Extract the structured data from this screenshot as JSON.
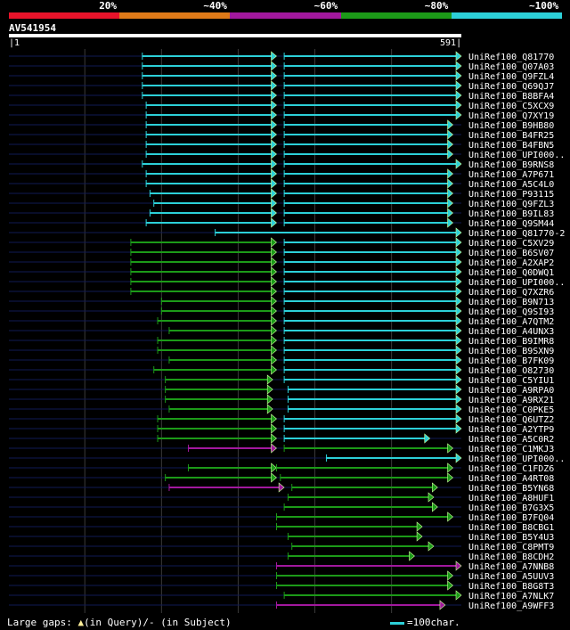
{
  "legend": {
    "labels": [
      "20%",
      "~40%",
      "~60%",
      "~80%",
      "~100%"
    ],
    "colors": [
      "#e8132a",
      "#e07a18",
      "#a2189e",
      "#1c9a18",
      "#2cd0d8"
    ]
  },
  "query": {
    "id": "AV541954",
    "start": "1",
    "end": "591"
  },
  "footer": {
    "gaps_text": "Large gaps: ",
    "query_part": "(in Query)/- (in Subject)",
    "scale_text": "=100char."
  },
  "chart_data": {
    "type": "alignment",
    "query_length": 591,
    "hits": [
      {
        "id": "UniRef100_Q81770",
        "segs": [
          [
            1,
            591,
            "blank"
          ],
          [
            175,
            350,
            "cyan"
          ],
          [
            360,
            591,
            "cyan"
          ]
        ]
      },
      {
        "id": "UniRef100_Q07A03",
        "segs": [
          [
            1,
            591,
            "blank"
          ],
          [
            175,
            350,
            "cyan"
          ],
          [
            360,
            591,
            "cyan"
          ]
        ]
      },
      {
        "id": "UniRef100_Q9FZL4",
        "segs": [
          [
            1,
            591,
            "blank"
          ],
          [
            175,
            350,
            "cyan"
          ],
          [
            360,
            591,
            "cyan"
          ]
        ]
      },
      {
        "id": "UniRef100_Q69QJ7",
        "segs": [
          [
            1,
            591,
            "blank"
          ],
          [
            175,
            350,
            "cyan"
          ],
          [
            360,
            591,
            "cyan"
          ]
        ]
      },
      {
        "id": "UniRef100_B8BFA4",
        "segs": [
          [
            1,
            591,
            "blank"
          ],
          [
            175,
            350,
            "cyan"
          ],
          [
            360,
            591,
            "cyan"
          ]
        ]
      },
      {
        "id": "UniRef100_C5XCX9",
        "segs": [
          [
            1,
            591,
            "blank"
          ],
          [
            180,
            350,
            "cyan"
          ],
          [
            360,
            591,
            "cyan"
          ]
        ]
      },
      {
        "id": "UniRef100_Q7XY19",
        "segs": [
          [
            1,
            591,
            "blank"
          ],
          [
            180,
            350,
            "cyan"
          ],
          [
            360,
            591,
            "cyan"
          ]
        ]
      },
      {
        "id": "UniRef100_B9HB80",
        "segs": [
          [
            1,
            591,
            "blank"
          ],
          [
            180,
            350,
            "cyan"
          ],
          [
            360,
            580,
            "cyan"
          ]
        ]
      },
      {
        "id": "UniRef100_B4FR25",
        "segs": [
          [
            1,
            591,
            "blank"
          ],
          [
            180,
            350,
            "cyan"
          ],
          [
            360,
            580,
            "cyan"
          ]
        ]
      },
      {
        "id": "UniRef100_B4FBN5",
        "segs": [
          [
            1,
            591,
            "blank"
          ],
          [
            180,
            350,
            "cyan"
          ],
          [
            360,
            580,
            "cyan"
          ]
        ]
      },
      {
        "id": "UniRef100_UPI000..",
        "segs": [
          [
            1,
            591,
            "blank"
          ],
          [
            180,
            350,
            "cyan"
          ],
          [
            360,
            580,
            "cyan"
          ]
        ]
      },
      {
        "id": "UniRef100_B9RNS8",
        "segs": [
          [
            1,
            591,
            "blank"
          ],
          [
            175,
            350,
            "cyan"
          ],
          [
            360,
            591,
            "cyan"
          ]
        ]
      },
      {
        "id": "UniRef100_A7P671",
        "segs": [
          [
            1,
            591,
            "blank"
          ],
          [
            180,
            350,
            "cyan"
          ],
          [
            360,
            580,
            "cyan"
          ]
        ]
      },
      {
        "id": "UniRef100_A5C4L0",
        "segs": [
          [
            1,
            591,
            "blank"
          ],
          [
            180,
            350,
            "cyan"
          ],
          [
            360,
            580,
            "cyan"
          ]
        ]
      },
      {
        "id": "UniRef100_P93115",
        "segs": [
          [
            1,
            591,
            "blank"
          ],
          [
            185,
            350,
            "cyan"
          ],
          [
            360,
            580,
            "cyan"
          ]
        ]
      },
      {
        "id": "UniRef100_Q9FZL3",
        "segs": [
          [
            1,
            591,
            "blank"
          ],
          [
            190,
            350,
            "cyan"
          ],
          [
            360,
            580,
            "cyan"
          ]
        ]
      },
      {
        "id": "UniRef100_B9IL83",
        "segs": [
          [
            1,
            591,
            "blank"
          ],
          [
            185,
            350,
            "cyan"
          ],
          [
            360,
            580,
            "cyan"
          ]
        ]
      },
      {
        "id": "UniRef100_Q9SM44",
        "segs": [
          [
            1,
            591,
            "blank"
          ],
          [
            180,
            350,
            "cyan"
          ],
          [
            360,
            580,
            "cyan"
          ]
        ]
      },
      {
        "id": "UniRef100_Q81770-2",
        "segs": [
          [
            1,
            591,
            "blank"
          ],
          [
            270,
            591,
            "cyan"
          ]
        ]
      },
      {
        "id": "UniRef100_C5XV29",
        "segs": [
          [
            1,
            591,
            "blank"
          ],
          [
            160,
            350,
            "green"
          ],
          [
            360,
            591,
            "cyan"
          ]
        ]
      },
      {
        "id": "UniRef100_B6SV07",
        "segs": [
          [
            1,
            591,
            "blank"
          ],
          [
            160,
            350,
            "green"
          ],
          [
            360,
            591,
            "cyan"
          ]
        ]
      },
      {
        "id": "UniRef100_A2XAP2",
        "segs": [
          [
            1,
            591,
            "blank"
          ],
          [
            160,
            350,
            "green"
          ],
          [
            360,
            591,
            "cyan"
          ]
        ]
      },
      {
        "id": "UniRef100_Q0DWQ1",
        "segs": [
          [
            1,
            591,
            "blank"
          ],
          [
            160,
            350,
            "green"
          ],
          [
            360,
            591,
            "cyan"
          ]
        ]
      },
      {
        "id": "UniRef100_UPI000..",
        "segs": [
          [
            1,
            591,
            "blank"
          ],
          [
            160,
            350,
            "green"
          ],
          [
            360,
            591,
            "cyan"
          ]
        ]
      },
      {
        "id": "UniRef100_Q7XZR6",
        "segs": [
          [
            1,
            591,
            "blank"
          ],
          [
            160,
            350,
            "green"
          ],
          [
            360,
            591,
            "cyan"
          ]
        ]
      },
      {
        "id": "UniRef100_B9N713",
        "segs": [
          [
            1,
            591,
            "blank"
          ],
          [
            200,
            350,
            "green"
          ],
          [
            360,
            591,
            "cyan"
          ]
        ]
      },
      {
        "id": "UniRef100_Q9SI93",
        "segs": [
          [
            1,
            591,
            "blank"
          ],
          [
            200,
            350,
            "green"
          ],
          [
            360,
            591,
            "cyan"
          ]
        ]
      },
      {
        "id": "UniRef100_A7QTM2",
        "segs": [
          [
            1,
            591,
            "blank"
          ],
          [
            195,
            350,
            "green"
          ],
          [
            360,
            591,
            "cyan"
          ]
        ]
      },
      {
        "id": "UniRef100_A4UNX3",
        "segs": [
          [
            1,
            591,
            "blank"
          ],
          [
            210,
            350,
            "green"
          ],
          [
            360,
            591,
            "cyan"
          ]
        ]
      },
      {
        "id": "UniRef100_B9IMR8",
        "segs": [
          [
            1,
            591,
            "blank"
          ],
          [
            195,
            350,
            "green"
          ],
          [
            360,
            591,
            "cyan"
          ]
        ]
      },
      {
        "id": "UniRef100_B9SXN9",
        "segs": [
          [
            1,
            591,
            "blank"
          ],
          [
            195,
            350,
            "green"
          ],
          [
            360,
            591,
            "cyan"
          ]
        ]
      },
      {
        "id": "UniRef100_B7FK09",
        "segs": [
          [
            1,
            591,
            "blank"
          ],
          [
            210,
            350,
            "green"
          ],
          [
            360,
            591,
            "cyan"
          ]
        ]
      },
      {
        "id": "UniRef100_O82730",
        "segs": [
          [
            1,
            591,
            "blank"
          ],
          [
            190,
            350,
            "green"
          ],
          [
            360,
            591,
            "cyan"
          ]
        ]
      },
      {
        "id": "UniRef100_C5YIU1",
        "segs": [
          [
            1,
            591,
            "blank"
          ],
          [
            205,
            345,
            "green"
          ],
          [
            360,
            591,
            "cyan"
          ]
        ]
      },
      {
        "id": "UniRef100_A9RPA0",
        "segs": [
          [
            1,
            591,
            "blank"
          ],
          [
            205,
            345,
            "green"
          ],
          [
            365,
            591,
            "cyan"
          ]
        ]
      },
      {
        "id": "UniRef100_A9RX21",
        "segs": [
          [
            1,
            591,
            "blank"
          ],
          [
            205,
            345,
            "green"
          ],
          [
            365,
            591,
            "cyan"
          ]
        ]
      },
      {
        "id": "UniRef100_C0PKE5",
        "segs": [
          [
            1,
            591,
            "blank"
          ],
          [
            210,
            345,
            "green"
          ],
          [
            365,
            591,
            "cyan"
          ]
        ]
      },
      {
        "id": "UniRef100_Q6UTZ2",
        "segs": [
          [
            1,
            591,
            "blank"
          ],
          [
            195,
            350,
            "green"
          ],
          [
            360,
            591,
            "cyan"
          ]
        ]
      },
      {
        "id": "UniRef100_A2YTP9",
        "segs": [
          [
            1,
            591,
            "blank"
          ],
          [
            195,
            350,
            "green"
          ],
          [
            360,
            591,
            "cyan"
          ]
        ]
      },
      {
        "id": "UniRef100_A5C0R2",
        "segs": [
          [
            1,
            591,
            "blank"
          ],
          [
            195,
            350,
            "green"
          ],
          [
            360,
            550,
            "cyan"
          ]
        ]
      },
      {
        "id": "UniRef100_C1MKJ3",
        "segs": [
          [
            1,
            591,
            "blank"
          ],
          [
            235,
            350,
            "magenta"
          ],
          [
            360,
            580,
            "green"
          ]
        ]
      },
      {
        "id": "UniRef100_UPI000..",
        "segs": [
          [
            1,
            591,
            "blank"
          ],
          [
            415,
            591,
            "cyan"
          ]
        ]
      },
      {
        "id": "UniRef100_C1FDZ6",
        "segs": [
          [
            1,
            591,
            "blank"
          ],
          [
            235,
            350,
            "green"
          ],
          [
            350,
            580,
            "green"
          ]
        ]
      },
      {
        "id": "UniRef100_A4RT08",
        "segs": [
          [
            1,
            591,
            "blank"
          ],
          [
            205,
            350,
            "green"
          ],
          [
            355,
            580,
            "green"
          ]
        ]
      },
      {
        "id": "UniRef100_B5YN68",
        "segs": [
          [
            1,
            591,
            "blank"
          ],
          [
            210,
            360,
            "magenta"
          ],
          [
            370,
            560,
            "green"
          ]
        ]
      },
      {
        "id": "UniRef100_A8HUF1",
        "segs": [
          [
            1,
            591,
            "blank"
          ],
          [
            365,
            555,
            "green"
          ]
        ]
      },
      {
        "id": "UniRef100_B7G3X5",
        "segs": [
          [
            1,
            591,
            "blank"
          ],
          [
            360,
            560,
            "green"
          ]
        ]
      },
      {
        "id": "UniRef100_B7FQ04",
        "segs": [
          [
            1,
            591,
            "blank"
          ],
          [
            350,
            580,
            "green"
          ]
        ]
      },
      {
        "id": "UniRef100_B8CBG1",
        "segs": [
          [
            1,
            591,
            "blank"
          ],
          [
            350,
            540,
            "green"
          ]
        ]
      },
      {
        "id": "UniRef100_B5Y4U3",
        "segs": [
          [
            1,
            591,
            "blank"
          ],
          [
            365,
            540,
            "green"
          ]
        ]
      },
      {
        "id": "UniRef100_C8PMT9",
        "segs": [
          [
            1,
            591,
            "blank"
          ],
          [
            370,
            555,
            "green"
          ]
        ]
      },
      {
        "id": "UniRef100_B8CDH2",
        "segs": [
          [
            1,
            591,
            "blank"
          ],
          [
            365,
            530,
            "green"
          ]
        ]
      },
      {
        "id": "UniRef100_A7NNB8",
        "segs": [
          [
            1,
            591,
            "blank"
          ],
          [
            350,
            591,
            "magenta"
          ]
        ]
      },
      {
        "id": "UniRef100_A5UUV3",
        "segs": [
          [
            1,
            591,
            "blank"
          ],
          [
            350,
            580,
            "green"
          ]
        ]
      },
      {
        "id": "UniRef100_B8G8T3",
        "segs": [
          [
            1,
            591,
            "blank"
          ],
          [
            350,
            580,
            "green"
          ]
        ]
      },
      {
        "id": "UniRef100_A7NLK7",
        "segs": [
          [
            1,
            591,
            "blank"
          ],
          [
            360,
            591,
            "green"
          ]
        ]
      },
      {
        "id": "UniRef100_A9WFF3",
        "segs": [
          [
            1,
            591,
            "blank"
          ],
          [
            350,
            570,
            "magenta"
          ]
        ]
      }
    ]
  }
}
